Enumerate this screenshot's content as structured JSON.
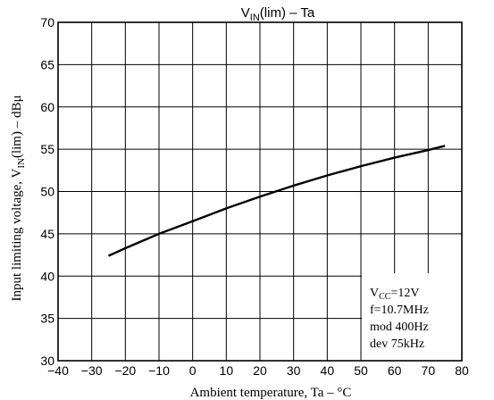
{
  "chart_data": {
    "type": "line",
    "title": {
      "main": "V",
      "sub": "IN",
      "rest": "(lim)  –  Ta"
    },
    "xlabel": "Ambient temperature, Ta  –  °C",
    "ylabel": {
      "main": "Input limiting voltage, V",
      "sub": "IN",
      "rest": "(lim)  –  dBμ"
    },
    "xlim": [
      -40,
      80
    ],
    "ylim": [
      30,
      70
    ],
    "xticks": [
      -40,
      -30,
      -20,
      -10,
      0,
      10,
      20,
      30,
      40,
      50,
      60,
      70,
      80
    ],
    "yticks": [
      30,
      35,
      40,
      45,
      50,
      55,
      60,
      65,
      70
    ],
    "grid": true,
    "series": [
      {
        "x": [
          -25,
          -20,
          -10,
          0,
          10,
          20,
          30,
          40,
          50,
          60,
          70,
          75
        ],
        "y": [
          42.4,
          43.3,
          45.0,
          46.5,
          48.0,
          49.4,
          50.7,
          51.9,
          53.0,
          54.0,
          54.9,
          55.4
        ]
      }
    ],
    "annotation": {
      "lines": [
        {
          "main": "V",
          "sub": "CC",
          "rest": "=12V"
        },
        {
          "main": "f=10.7MHz"
        },
        {
          "main": "mod 400Hz"
        },
        {
          "main": "dev 75kHz"
        }
      ],
      "placement": "bottom-right"
    }
  }
}
